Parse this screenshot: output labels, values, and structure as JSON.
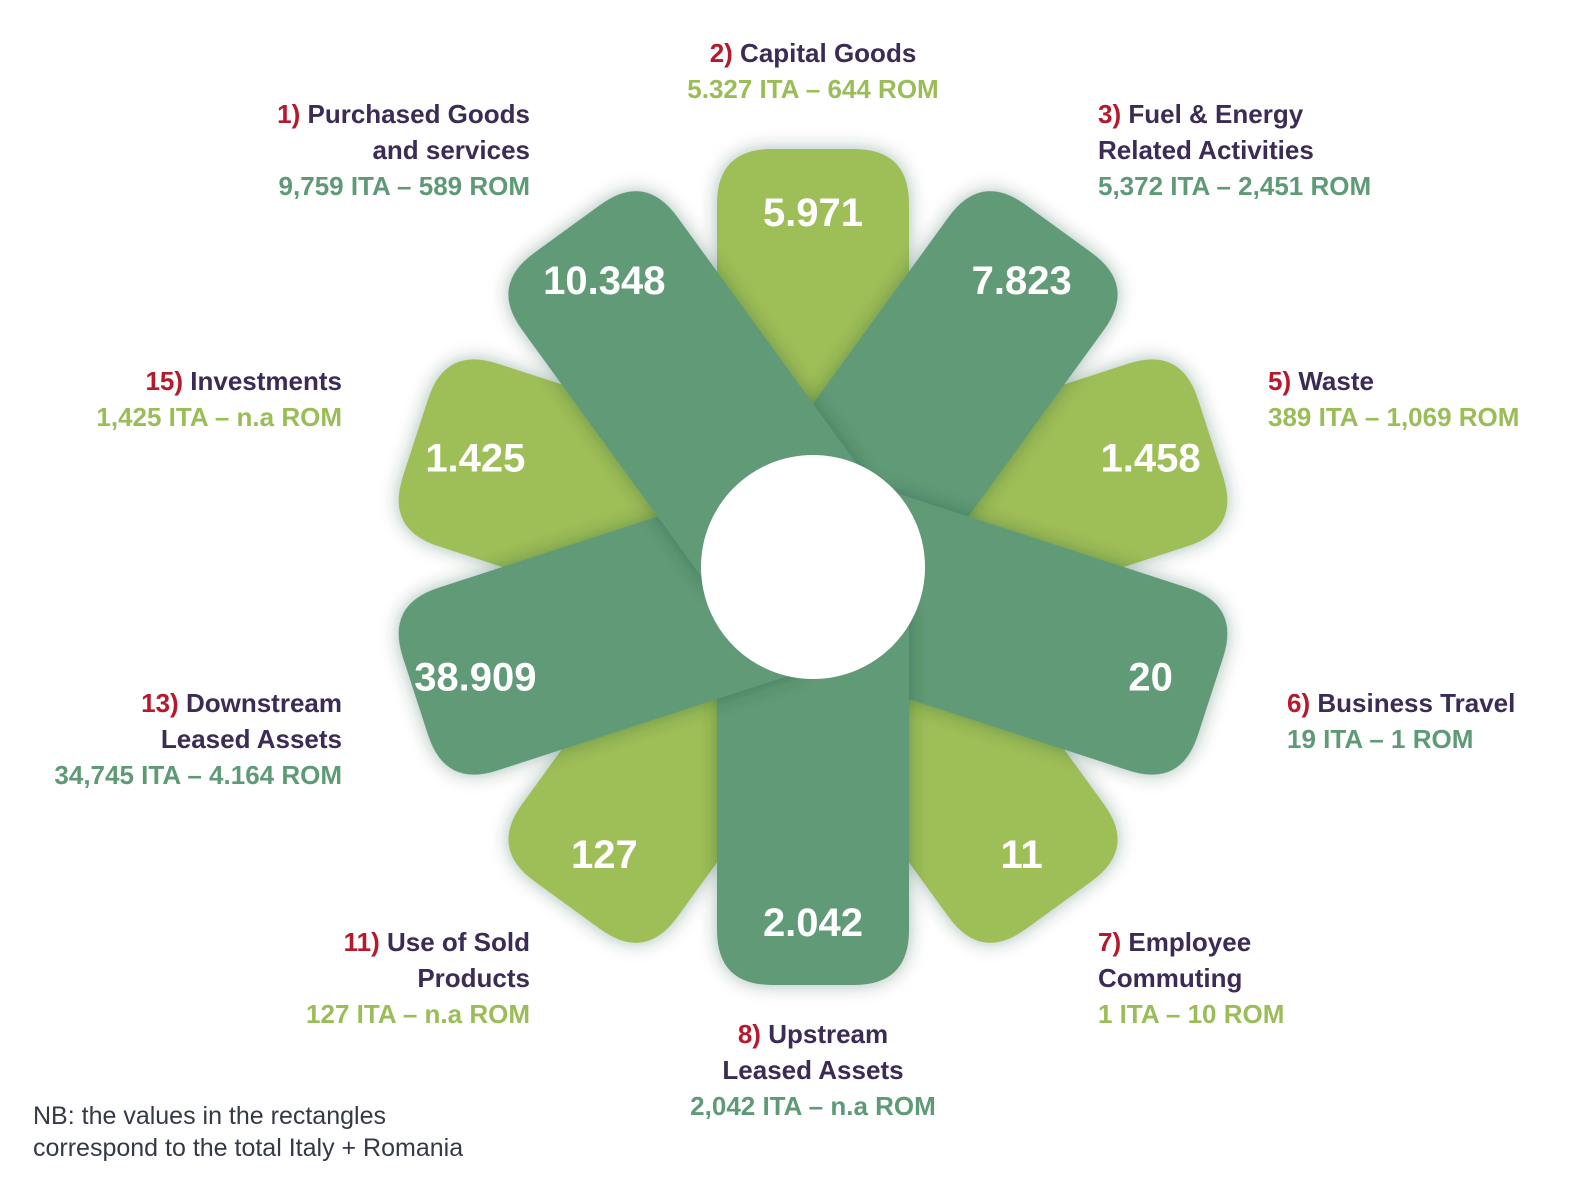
{
  "colors": {
    "dark_green": "#609a77",
    "light_green": "#9ebe58",
    "number_red": "#b5192b",
    "name_purple": "#3b2b55"
  },
  "petals": [
    {
      "value": "5.971",
      "color": "light"
    },
    {
      "value": "7.823",
      "color": "dark"
    },
    {
      "value": "1.458",
      "color": "light"
    },
    {
      "value": "20",
      "color": "dark"
    },
    {
      "value": "11",
      "color": "light"
    },
    {
      "value": "2.042",
      "color": "dark"
    },
    {
      "value": "127",
      "color": "light"
    },
    {
      "value": "38.909",
      "color": "dark"
    },
    {
      "value": "1.425",
      "color": "light"
    },
    {
      "value": "10.348",
      "color": "dark"
    }
  ],
  "categories": {
    "c1": {
      "num": "1)",
      "name_lines": [
        "Purchased Goods",
        "and services"
      ],
      "values": "9,759 ITA – 589 ROM"
    },
    "c2": {
      "num": "2)",
      "name_lines": [
        "Capital Goods"
      ],
      "values": "5.327 ITA – 644 ROM"
    },
    "c3": {
      "num": "3)",
      "name_lines": [
        "Fuel & Energy",
        "Related Activities"
      ],
      "values": "5,372 ITA – 2,451 ROM"
    },
    "c5": {
      "num": "5)",
      "name_lines": [
        "Waste"
      ],
      "values": "389 ITA – 1,069 ROM"
    },
    "c6": {
      "num": "6)",
      "name_lines": [
        "Business Travel"
      ],
      "values": "19 ITA – 1 ROM"
    },
    "c7": {
      "num": "7)",
      "name_lines": [
        "Employee",
        "Commuting"
      ],
      "values": "1 ITA – 10 ROM"
    },
    "c8": {
      "num": "8)",
      "name_lines": [
        "Upstream",
        "Leased Assets"
      ],
      "values": "2,042 ITA – n.a ROM"
    },
    "c11": {
      "num": "11)",
      "name_lines": [
        "Use of Sold",
        "Products"
      ],
      "values": "127 ITA – n.a ROM"
    },
    "c13": {
      "num": "13)",
      "name_lines": [
        "Downstream",
        "Leased Assets"
      ],
      "values": "34,745 ITA – 4.164 ROM"
    },
    "c15": {
      "num": "15)",
      "name_lines": [
        "Investments"
      ],
      "values": "1,425 ITA – n.a ROM"
    }
  },
  "note": {
    "line1": "NB: the values in the rectangles",
    "line2": "correspond to the total Italy + Romania"
  }
}
